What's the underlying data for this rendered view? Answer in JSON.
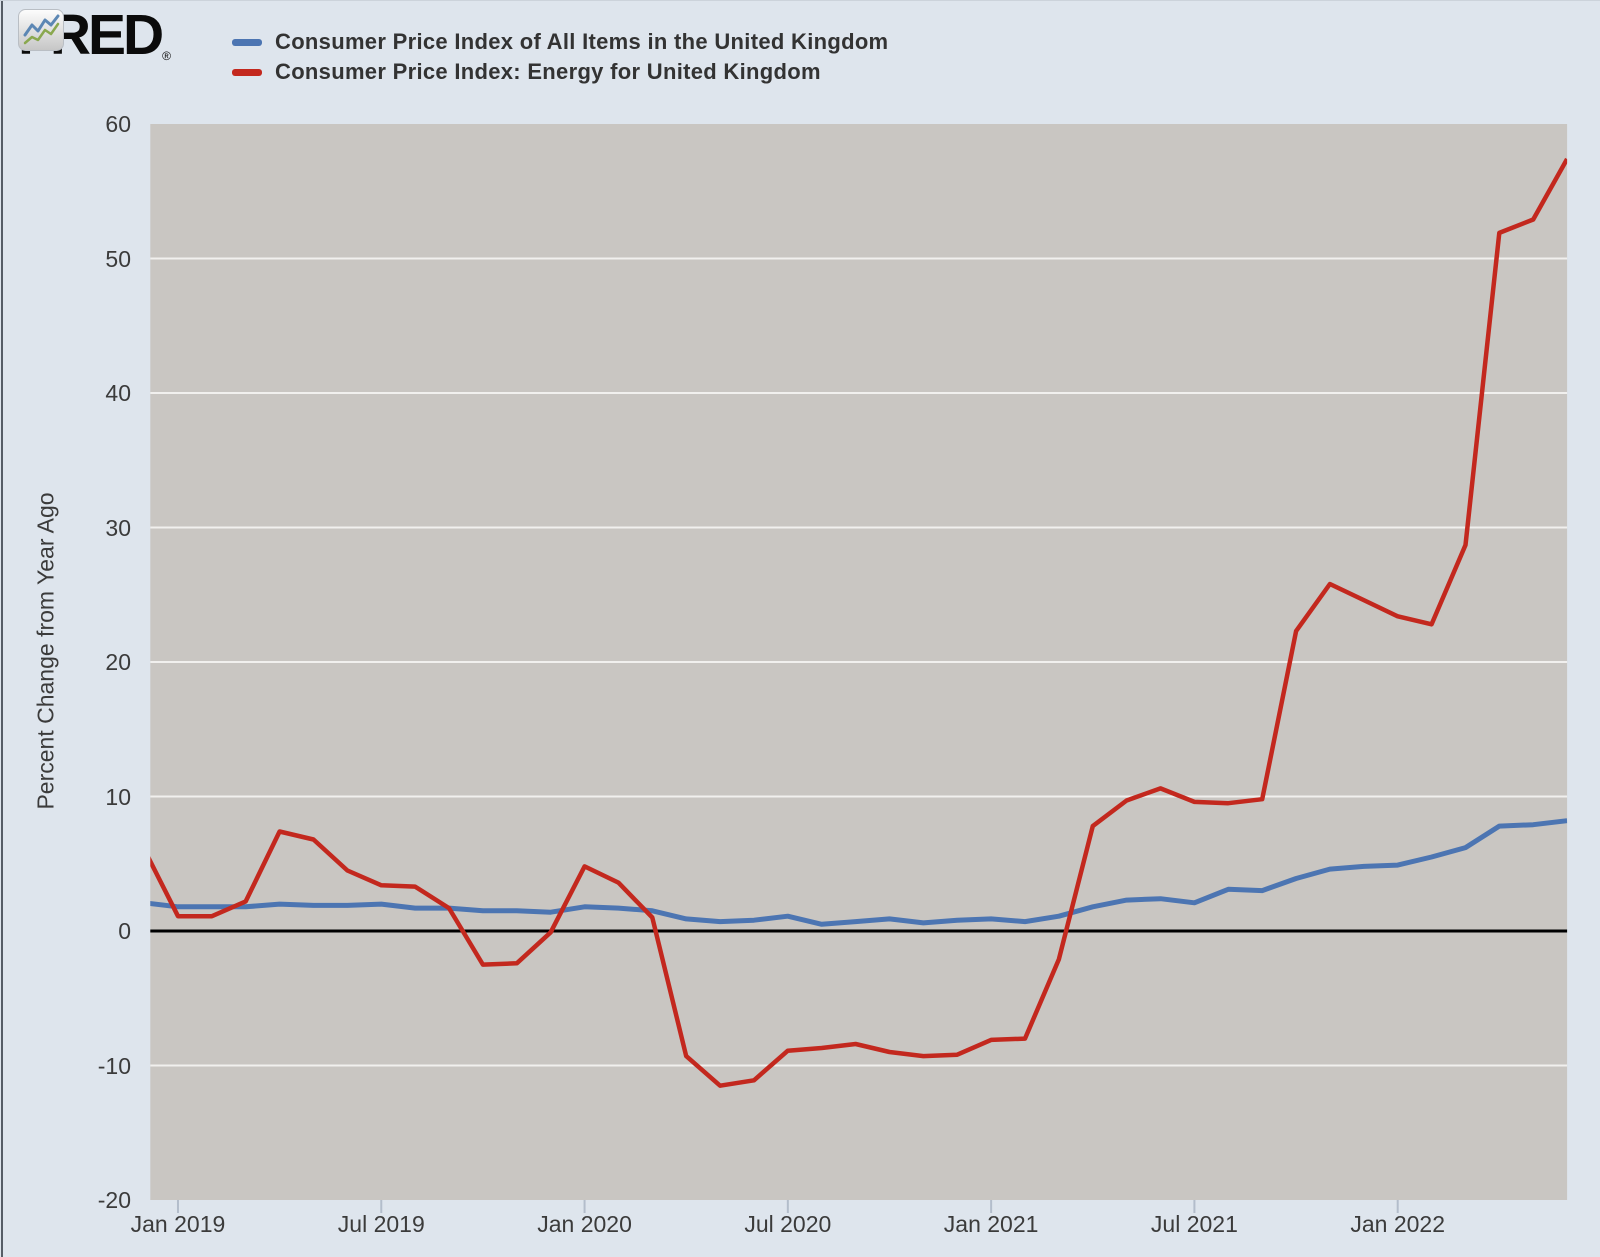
{
  "header": {
    "logo_text": "FRED",
    "logo_registered": "®",
    "legend": [
      {
        "label": "Consumer Price Index of All Items in the United Kingdom",
        "color": "#4c75b2"
      },
      {
        "label": "Consumer Price Index: Energy for United Kingdom",
        "color": "#c3281e"
      }
    ]
  },
  "y_axis": {
    "title": "Percent Change from Year Ago",
    "ticks": [
      60,
      50,
      40,
      30,
      20,
      10,
      0,
      -10,
      -20
    ]
  },
  "x_axis": {
    "tick_labels": [
      "Jan 2019",
      "Jul 2019",
      "Jan 2020",
      "Jul 2020",
      "Jan 2021",
      "Jul 2021",
      "Jan 2022"
    ],
    "tick_month_indices": [
      1,
      7,
      13,
      19,
      25,
      31,
      37
    ]
  },
  "colors": {
    "background": "#dee5ed",
    "plot_background": "#c9c6c2",
    "gridline": "#f1f0ee",
    "zero_line": "#000000",
    "axis_text": "#3b3b3b",
    "tick_mark": "#b3bdcb",
    "series_all_items": "#4c75b2",
    "series_energy": "#c3281e"
  },
  "chart_data": {
    "type": "line",
    "title": "",
    "ylabel": "Percent Change from Year Ago",
    "xlabel": "",
    "ylim": [
      -20,
      60
    ],
    "grid": true,
    "legend_position": "top-left",
    "x": [
      "2018-12",
      "2019-01",
      "2019-02",
      "2019-03",
      "2019-04",
      "2019-05",
      "2019-06",
      "2019-07",
      "2019-08",
      "2019-09",
      "2019-10",
      "2019-11",
      "2019-12",
      "2020-01",
      "2020-02",
      "2020-03",
      "2020-04",
      "2020-05",
      "2020-06",
      "2020-07",
      "2020-08",
      "2020-09",
      "2020-10",
      "2020-11",
      "2020-12",
      "2021-01",
      "2021-02",
      "2021-03",
      "2021-04",
      "2021-05",
      "2021-06",
      "2021-07",
      "2021-08",
      "2021-09",
      "2021-10",
      "2021-11",
      "2021-12",
      "2022-01",
      "2022-02",
      "2022-03",
      "2022-04",
      "2022-05",
      "2022-06"
    ],
    "series": [
      {
        "name": "Consumer Price Index of All Items in the United Kingdom",
        "color": "#4c75b2",
        "values": [
          2.1,
          1.8,
          1.8,
          1.8,
          2.0,
          1.9,
          1.9,
          2.0,
          1.7,
          1.7,
          1.5,
          1.5,
          1.4,
          1.8,
          1.7,
          1.5,
          0.9,
          0.7,
          0.8,
          1.1,
          0.5,
          0.7,
          0.9,
          0.6,
          0.8,
          0.9,
          0.7,
          1.1,
          1.8,
          2.3,
          2.4,
          2.1,
          3.1,
          3.0,
          3.9,
          4.6,
          4.8,
          4.9,
          5.5,
          6.2,
          7.8,
          7.9,
          8.2
        ]
      },
      {
        "name": "Consumer Price Index: Energy for United Kingdom",
        "color": "#c3281e",
        "values": [
          6.1,
          1.1,
          1.1,
          2.2,
          7.4,
          6.8,
          4.5,
          3.4,
          3.3,
          1.7,
          -2.5,
          -2.4,
          -0.1,
          4.8,
          3.6,
          1.0,
          -9.3,
          -11.5,
          -11.1,
          -8.9,
          -8.7,
          -8.4,
          -9.0,
          -9.3,
          -9.2,
          -8.1,
          -8.0,
          -2.1,
          7.8,
          9.7,
          10.6,
          9.6,
          9.5,
          9.8,
          22.3,
          25.8,
          24.6,
          23.4,
          22.8,
          28.7,
          51.9,
          52.9,
          57.4
        ]
      }
    ]
  }
}
